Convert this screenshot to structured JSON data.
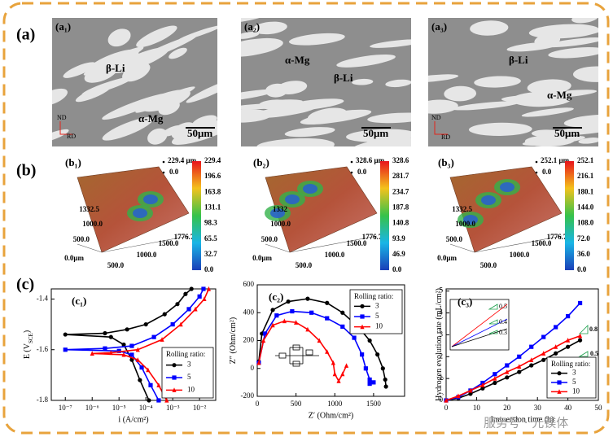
{
  "figure_labels": [
    "(a)",
    "(b)",
    "(c)"
  ],
  "micrographs": [
    {
      "label": "(a₁)",
      "beta": "β-Li",
      "alpha": "α-Mg",
      "nd": "ND",
      "rd": "RD",
      "scale": "50μm"
    },
    {
      "label": "(a₂)",
      "alpha": "α-Mg",
      "beta": "β-Li",
      "scale": "50μm"
    },
    {
      "label": "(a₃)",
      "beta": "β-Li",
      "alpha": "α-Mg",
      "nd": "ND",
      "rd": "RD",
      "scale": "50μm"
    }
  ],
  "surfaces": [
    {
      "label": "(b₁)",
      "zmax": "229.4 μm",
      "zmin": "0.0",
      "y_ticks": [
        "1332.5",
        "1000.0",
        "500.0",
        "0.0μm"
      ],
      "x_ticks": [
        "500.0",
        "1000.0",
        "1500.0",
        "1776.7"
      ],
      "colorbar": [
        "229.4",
        "196.6",
        "163.8",
        "131.1",
        "98.3",
        "65.5",
        "32.7",
        "0.0"
      ]
    },
    {
      "label": "(b₂)",
      "zmax": "328.6 μm",
      "zmin": "0.0",
      "y_ticks": [
        "1332",
        "1000.0",
        "500.0",
        "0.0μm"
      ],
      "x_ticks": [
        "500.0",
        "1000.0",
        "1500.0",
        "1776.7"
      ],
      "colorbar": [
        "328.6",
        "281.7",
        "234.7",
        "187.8",
        "140.8",
        "93.9",
        "46.9",
        "0.0"
      ]
    },
    {
      "label": "(b₃)",
      "zmax": "252.1 μm",
      "zmin": "0.0",
      "y_ticks": [
        "1332.5",
        "1000.0",
        "500.0",
        "0.0μm"
      ],
      "x_ticks": [
        "500.0",
        "1000.0",
        "1500.0",
        "1776.7"
      ],
      "colorbar": [
        "252.1",
        "216.1",
        "180.1",
        "144.0",
        "108.0",
        "72.0",
        "36.0",
        "0.0"
      ]
    }
  ],
  "chart_data": [
    {
      "type": "line",
      "label": "(c₁)",
      "x_label": "i (A/cm²)",
      "y_label": [
        "E (V",
        "SCE",
        ")"
      ],
      "log_x": true,
      "xlim": [
        3e-08,
        0.04
      ],
      "ylim": [
        -1.8,
        -1.36
      ],
      "xticks": [
        {
          "value": 1e-07,
          "label": "10⁻⁷"
        },
        {
          "value": 1e-06,
          "label": "10⁻⁶"
        },
        {
          "value": 1e-05,
          "label": "10⁻⁵"
        },
        {
          "value": 0.0001,
          "label": "10⁻⁴"
        },
        {
          "value": 0.001,
          "label": "10⁻³"
        },
        {
          "value": 0.01,
          "label": "10⁻²"
        }
      ],
      "yticks": [
        -1.8,
        -1.6,
        -1.4
      ],
      "legend_title": "Rolling ratio:",
      "legend": "lower right",
      "series": [
        {
          "name": "3",
          "color": "#000000",
          "marker": "circle",
          "x": [
            0.00013,
            6e-05,
            3e-05,
            1.5e-05,
            5e-06,
            1e-07,
            3e-06,
            2e-05,
            0.0001,
            0.0005,
            0.0015,
            0.003,
            0.005
          ],
          "values": [
            -1.8,
            -1.72,
            -1.64,
            -1.58,
            -1.55,
            -1.54,
            -1.535,
            -1.52,
            -1.5,
            -1.46,
            -1.42,
            -1.38,
            -1.36
          ]
        },
        {
          "name": "5",
          "color": "#0000ff",
          "marker": "square",
          "x": [
            0.0003,
            0.00015,
            7e-05,
            3e-05,
            1e-05,
            1e-07,
            3e-06,
            3e-05,
            0.0002,
            0.001,
            0.004,
            0.01,
            0.014
          ],
          "values": [
            -1.8,
            -1.74,
            -1.67,
            -1.62,
            -1.605,
            -1.6,
            -1.595,
            -1.585,
            -1.55,
            -1.5,
            -1.44,
            -1.39,
            -1.36
          ]
        },
        {
          "name": "10",
          "color": "#ff0000",
          "marker": "triangle",
          "x": [
            0.0006,
            0.0003,
            0.00012,
            5e-05,
            1.5e-05,
            1e-06,
            5e-06,
            5e-05,
            0.0004,
            0.002,
            0.007,
            0.015,
            0.022
          ],
          "values": [
            -1.8,
            -1.74,
            -1.68,
            -1.64,
            -1.62,
            -1.615,
            -1.612,
            -1.6,
            -1.56,
            -1.5,
            -1.44,
            -1.4,
            -1.36
          ]
        }
      ]
    },
    {
      "type": "line",
      "label": "(c₂)",
      "x_label": "Z′ (Ohm/cm²)",
      "y_label": [
        "Z″ (Ohm/cm²)"
      ],
      "xlim": [
        0,
        1900
      ],
      "ylim": [
        -200,
        600
      ],
      "xticks": [
        0,
        500,
        1000,
        1500
      ],
      "yticks": [
        -200,
        0,
        200,
        400,
        600
      ],
      "legend_title": "Rolling ratio:",
      "legend": "upper right",
      "series": [
        {
          "name": "3",
          "color": "#000000",
          "marker": "circle",
          "x": [
            20,
            60,
            200,
            400,
            650,
            900,
            1100,
            1300,
            1450,
            1550,
            1620,
            1650,
            1660
          ],
          "values": [
            50,
            250,
            420,
            480,
            500,
            470,
            400,
            300,
            200,
            100,
            0,
            -80,
            -130
          ]
        },
        {
          "name": "5",
          "color": "#0000ff",
          "marker": "square",
          "x": [
            20,
            100,
            250,
            450,
            700,
            900,
            1100,
            1250,
            1350,
            1400,
            1450,
            1500,
            1450
          ],
          "values": [
            40,
            250,
            380,
            410,
            400,
            360,
            300,
            220,
            100,
            0,
            -80,
            -100,
            -110
          ]
        },
        {
          "name": "10",
          "color": "#ff0000",
          "marker": "triangle",
          "x": [
            20,
            80,
            200,
            350,
            500,
            650,
            800,
            900,
            980,
            1000,
            1050,
            1100,
            1150
          ],
          "values": [
            40,
            200,
            310,
            340,
            330,
            280,
            200,
            120,
            40,
            -40,
            -90,
            -40,
            20
          ]
        }
      ]
    },
    {
      "type": "line",
      "label": "(c₃)",
      "x_label": "Immersion time (h)",
      "y_label": [
        "Hydrogen evolution rate (mL/cm²)"
      ],
      "xlim": [
        0,
        50
      ],
      "ylim": [
        0,
        5.1
      ],
      "xticks": [
        0,
        10,
        20,
        30,
        40,
        50
      ],
      "yticks": [
        0,
        1,
        2,
        3,
        4,
        5
      ],
      "legend_title": "Rolling ratio:",
      "legend": "lower right",
      "annotations": [
        "0.8",
        "0.5"
      ],
      "inset_annotations": [
        "0.5",
        "0.4",
        "0.3"
      ],
      "series": [
        {
          "name": "3",
          "color": "#000000",
          "marker": "circle",
          "x": [
            0,
            4,
            8,
            12,
            16,
            20,
            24,
            28,
            32,
            36,
            40,
            44
          ],
          "values": [
            0,
            0.1,
            0.3,
            0.55,
            0.8,
            1.05,
            1.3,
            1.6,
            1.85,
            2.15,
            2.45,
            2.75
          ]
        },
        {
          "name": "5",
          "color": "#0000ff",
          "marker": "square",
          "x": [
            0,
            4,
            8,
            12,
            16,
            20,
            24,
            28,
            32,
            36,
            40,
            44
          ],
          "values": [
            0,
            0.15,
            0.45,
            0.8,
            1.2,
            1.6,
            2.0,
            2.45,
            2.9,
            3.35,
            3.85,
            4.45
          ]
        },
        {
          "name": "10",
          "color": "#ff0000",
          "marker": "triangle",
          "x": [
            0,
            4,
            8,
            12,
            16,
            20,
            24,
            28,
            32,
            36,
            40,
            44
          ],
          "values": [
            0,
            0.2,
            0.45,
            0.7,
            1.0,
            1.3,
            1.55,
            1.85,
            2.15,
            2.45,
            2.75,
            2.95
          ]
        }
      ]
    }
  ],
  "watermark": "服务号 · 元镁体"
}
